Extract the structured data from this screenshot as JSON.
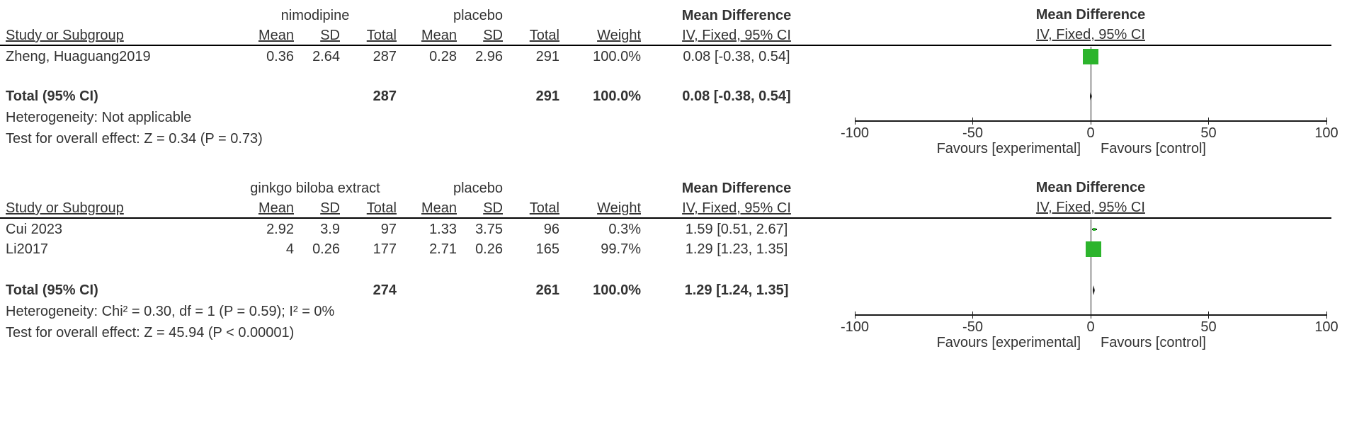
{
  "figure": {
    "marker_color": "#2cb42c",
    "diamond_color": "#1a1a1a",
    "line_color": "#1a1a1a",
    "text_color": "#333333",
    "background": "#ffffff"
  },
  "headers": {
    "study": "Study or Subgroup",
    "mean": "Mean",
    "sd": "SD",
    "total": "Total",
    "weight": "Weight",
    "effect": "Mean Difference",
    "method_ci": "IV, Fixed, 95% CI"
  },
  "chart_data": [
    {
      "type": "forest",
      "effect_measure": "Mean Difference",
      "model": "IV, Fixed, 95% CI",
      "group1_label": "nimodipine",
      "group2_label": "placebo",
      "studies": [
        {
          "name": "Zheng, Huaguang2019",
          "mean1": "0.36",
          "sd1": "2.64",
          "total1": "287",
          "mean2": "0.28",
          "sd2": "2.96",
          "total2": "291",
          "weight": "100.0%",
          "ci_text": "0.08 [-0.38, 0.54]",
          "md": 0.08,
          "ci_low": -0.38,
          "ci_high": 0.54,
          "weight_pct": 100.0
        }
      ],
      "total": {
        "label": "Total (95% CI)",
        "total1": "287",
        "total2": "291",
        "weight": "100.0%",
        "ci_text": "0.08 [-0.38, 0.54]",
        "md": 0.08,
        "ci_low": -0.38,
        "ci_high": 0.54
      },
      "heterogeneity": "Heterogeneity: Not applicable",
      "overall_effect": "Test for overall effect: Z = 0.34 (P = 0.73)",
      "axis": {
        "min": -100,
        "max": 100,
        "ticks": [
          -100,
          -50,
          0,
          50,
          100
        ]
      },
      "favours_left": "Favours [experimental]",
      "favours_right": "Favours [control]"
    },
    {
      "type": "forest",
      "effect_measure": "Mean Difference",
      "model": "IV, Fixed, 95% CI",
      "group1_label": "ginkgo biloba extract",
      "group2_label": "placebo",
      "studies": [
        {
          "name": "Cui 2023",
          "mean1": "2.92",
          "sd1": "3.9",
          "total1": "97",
          "mean2": "1.33",
          "sd2": "3.75",
          "total2": "96",
          "weight": "0.3%",
          "ci_text": "1.59 [0.51, 2.67]",
          "md": 1.59,
          "ci_low": 0.51,
          "ci_high": 2.67,
          "weight_pct": 0.3
        },
        {
          "name": "Li2017",
          "mean1": "4",
          "sd1": "0.26",
          "total1": "177",
          "mean2": "2.71",
          "sd2": "0.26",
          "total2": "165",
          "weight": "99.7%",
          "ci_text": "1.29 [1.23, 1.35]",
          "md": 1.29,
          "ci_low": 1.23,
          "ci_high": 1.35,
          "weight_pct": 99.7
        }
      ],
      "total": {
        "label": "Total (95% CI)",
        "total1": "274",
        "total2": "261",
        "weight": "100.0%",
        "ci_text": "1.29 [1.24, 1.35]",
        "md": 1.29,
        "ci_low": 1.24,
        "ci_high": 1.35
      },
      "heterogeneity": "Heterogeneity: Chi² = 0.30, df = 1 (P = 0.59); I² = 0%",
      "overall_effect": "Test for overall effect: Z = 45.94 (P < 0.00001)",
      "axis": {
        "min": -100,
        "max": 100,
        "ticks": [
          -100,
          -50,
          0,
          50,
          100
        ]
      },
      "favours_left": "Favours [experimental]",
      "favours_right": "Favours [control]"
    }
  ]
}
